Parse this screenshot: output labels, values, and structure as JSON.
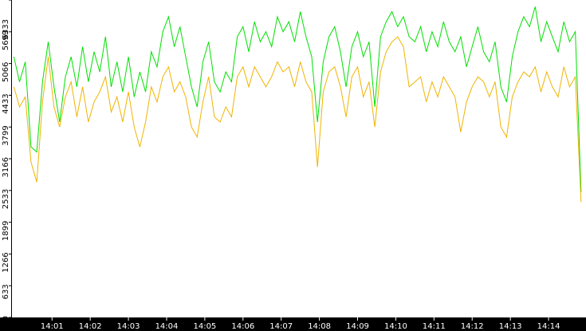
{
  "chart_data": {
    "type": "line",
    "x": [
      0,
      0.15,
      0.3,
      0.45,
      0.6,
      0.75,
      0.9,
      1.05,
      1.2,
      1.35,
      1.5,
      1.65,
      1.8,
      1.95,
      2.1,
      2.25,
      2.4,
      2.55,
      2.7,
      2.85,
      3,
      3.15,
      3.3,
      3.45,
      3.6,
      3.75,
      3.9,
      4.05,
      4.2,
      4.35,
      4.5,
      4.65,
      4.8,
      4.95,
      5.1,
      5.25,
      5.4,
      5.55,
      5.7,
      5.85,
      6,
      6.15,
      6.3,
      6.45,
      6.6,
      6.75,
      6.9,
      7.05,
      7.2,
      7.35,
      7.5,
      7.65,
      7.8,
      7.95,
      8.1,
      8.25,
      8.4,
      8.55,
      8.7,
      8.85,
      9,
      9.15,
      9.3,
      9.45,
      9.6,
      9.75,
      9.9,
      10.05,
      10.2,
      10.35,
      10.5,
      10.65,
      10.8,
      10.95,
      11.1,
      11.25,
      11.4,
      11.55,
      11.7,
      11.85,
      12,
      12.15,
      12.3,
      12.45,
      12.6,
      12.75,
      12.9,
      13.05,
      13.2,
      13.35,
      13.5,
      13.65,
      13.8,
      13.95,
      14.1,
      14.25,
      14.4,
      14.55,
      14.7,
      14.85
    ],
    "series": [
      {
        "color": "#00e000",
        "values": [
          5200,
          4700,
          5100,
          3400,
          3300,
          4700,
          5500,
          4600,
          3900,
          4800,
          5200,
          4600,
          5400,
          4700,
          5300,
          4900,
          5600,
          4600,
          5100,
          4500,
          5200,
          4400,
          4900,
          4500,
          5300,
          5000,
          5700,
          6000,
          5400,
          5800,
          5200,
          4600,
          4200,
          5100,
          5500,
          4700,
          4500,
          4900,
          4700,
          5600,
          5800,
          5300,
          5900,
          5500,
          5700,
          5400,
          6000,
          5700,
          5900,
          5500,
          6100,
          5600,
          5200,
          3900,
          5100,
          5600,
          5800,
          5300,
          4600,
          5400,
          5700,
          5200,
          5500,
          4200,
          5600,
          5900,
          6100,
          5800,
          6000,
          5600,
          5500,
          5800,
          5300,
          5700,
          5400,
          5900,
          5500,
          5300,
          5600,
          5000,
          5400,
          5800,
          5300,
          5100,
          5500,
          4600,
          4300,
          5200,
          5700,
          6000,
          5800,
          6200,
          5500,
          5900,
          5600,
          5300,
          5900,
          5500,
          5700,
          2500
        ]
      },
      {
        "color": "#f0b400",
        "values": [
          4600,
          4200,
          4400,
          3100,
          2700,
          4300,
          5200,
          4200,
          3800,
          4400,
          4700,
          4000,
          4600,
          3900,
          4300,
          4500,
          4800,
          4100,
          4400,
          3900,
          4500,
          3800,
          3400,
          3900,
          4600,
          4300,
          4800,
          5000,
          4500,
          4700,
          4400,
          3800,
          3600,
          4300,
          4800,
          4000,
          3900,
          4200,
          4000,
          4800,
          5000,
          4600,
          5000,
          4800,
          4600,
          4800,
          5100,
          4900,
          5000,
          4600,
          5100,
          4700,
          4500,
          3000,
          4500,
          4900,
          5000,
          4600,
          4000,
          4800,
          5000,
          4400,
          4700,
          3800,
          4900,
          5300,
          5500,
          5600,
          5400,
          4600,
          4700,
          4800,
          4300,
          4700,
          4400,
          4800,
          4600,
          4400,
          3700,
          4300,
          4600,
          4800,
          4700,
          4400,
          4700,
          3800,
          3600,
          4400,
          4700,
          4900,
          4800,
          5000,
          4500,
          4900,
          4600,
          4400,
          5000,
          4600,
          4800,
          2300
        ]
      }
    ],
    "xlim": [
      -0.07,
      14.98
    ],
    "xticks": [
      {
        "value": 1,
        "label": "14:01"
      },
      {
        "value": 2,
        "label": "14:02"
      },
      {
        "value": 3,
        "label": "14:03"
      },
      {
        "value": 4,
        "label": "14:04"
      },
      {
        "value": 5,
        "label": "14:05"
      },
      {
        "value": 6,
        "label": "14:06"
      },
      {
        "value": 7,
        "label": "14:07"
      },
      {
        "value": 8,
        "label": "14:08"
      },
      {
        "value": 9,
        "label": "14:09"
      },
      {
        "value": 10,
        "label": "14:10"
      },
      {
        "value": 11,
        "label": "14:11"
      },
      {
        "value": 12,
        "label": "14:12"
      },
      {
        "value": 13,
        "label": "14:13"
      },
      {
        "value": 14,
        "label": "14:14"
      }
    ],
    "ylim": [
      0,
      6333
    ],
    "yticks": [
      0,
      633,
      1266,
      1899,
      2533,
      3166,
      3799,
      4433,
      5066,
      5699,
      6333
    ]
  }
}
